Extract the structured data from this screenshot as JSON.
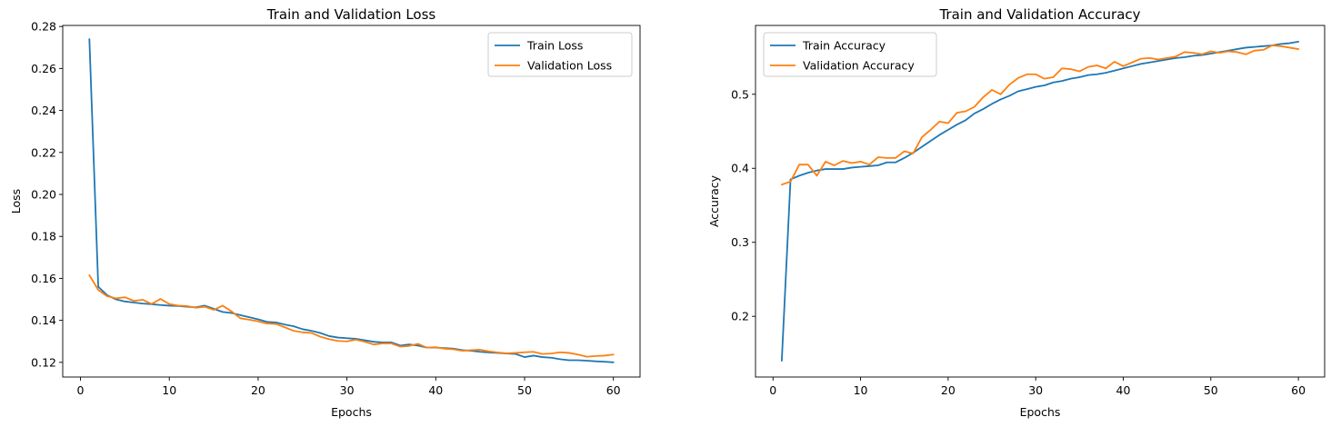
{
  "chart_data": [
    {
      "type": "line",
      "title": "Train and Validation Loss",
      "xlabel": "Epochs",
      "ylabel": "Loss",
      "xlim": [
        -2,
        63
      ],
      "ylim": [
        0.113,
        0.2805
      ],
      "xticks": [
        0,
        10,
        20,
        30,
        40,
        50,
        60
      ],
      "yticks": [
        0.12,
        0.14,
        0.16,
        0.18,
        0.2,
        0.22,
        0.24,
        0.26,
        0.28
      ],
      "ytick_labels": [
        "0.12",
        "0.14",
        "0.16",
        "0.18",
        "0.20",
        "0.22",
        "0.24",
        "0.26",
        "0.28"
      ],
      "legend_position": "upper-right",
      "grid": false,
      "x": [
        1,
        2,
        3,
        4,
        5,
        6,
        7,
        8,
        9,
        10,
        11,
        12,
        13,
        14,
        15,
        16,
        17,
        18,
        19,
        20,
        21,
        22,
        23,
        24,
        25,
        26,
        27,
        28,
        29,
        30,
        31,
        32,
        33,
        34,
        35,
        36,
        37,
        38,
        39,
        40,
        41,
        42,
        43,
        44,
        45,
        46,
        47,
        48,
        49,
        50,
        51,
        52,
        53,
        54,
        55,
        56,
        57,
        58,
        59,
        60
      ],
      "series": [
        {
          "name": "Train Loss",
          "color": "#1f77b4",
          "values": [
            0.274,
            0.156,
            0.152,
            0.15,
            0.149,
            0.1485,
            0.148,
            0.1477,
            0.1473,
            0.147,
            0.1468,
            0.1465,
            0.1462,
            0.147,
            0.1455,
            0.144,
            0.1435,
            0.1425,
            0.1415,
            0.1405,
            0.1393,
            0.139,
            0.138,
            0.1372,
            0.1358,
            0.135,
            0.134,
            0.1325,
            0.1318,
            0.1315,
            0.1312,
            0.1305,
            0.1298,
            0.1295,
            0.1295,
            0.128,
            0.1285,
            0.128,
            0.127,
            0.127,
            0.1268,
            0.1265,
            0.1258,
            0.1255,
            0.125,
            0.1247,
            0.1245,
            0.1242,
            0.124,
            0.1225,
            0.1232,
            0.1225,
            0.1222,
            0.1215,
            0.121,
            0.121,
            0.1208,
            0.1205,
            0.1203,
            0.12
          ]
        },
        {
          "name": "Validation Loss",
          "color": "#ff7f0e",
          "values": [
            0.1615,
            0.1545,
            0.1515,
            0.1505,
            0.151,
            0.1493,
            0.1498,
            0.1478,
            0.1502,
            0.1478,
            0.147,
            0.1468,
            0.146,
            0.1465,
            0.145,
            0.147,
            0.1443,
            0.141,
            0.1403,
            0.1395,
            0.1385,
            0.1383,
            0.1367,
            0.135,
            0.1343,
            0.134,
            0.1322,
            0.131,
            0.1302,
            0.13,
            0.1308,
            0.1298,
            0.1285,
            0.129,
            0.129,
            0.1275,
            0.1278,
            0.1288,
            0.127,
            0.1272,
            0.1265,
            0.1262,
            0.1255,
            0.1258,
            0.126,
            0.1252,
            0.1247,
            0.1243,
            0.1245,
            0.1248,
            0.125,
            0.124,
            0.1242,
            0.1248,
            0.1245,
            0.1237,
            0.1227,
            0.123,
            0.1232,
            0.1237
          ]
        }
      ]
    },
    {
      "type": "line",
      "title": "Train and Validation Accuracy",
      "xlabel": "Epochs",
      "ylabel": "Accuracy",
      "xlim": [
        -2,
        63
      ],
      "ylim": [
        0.118,
        0.593
      ],
      "xticks": [
        0,
        10,
        20,
        30,
        40,
        50,
        60
      ],
      "yticks": [
        0.2,
        0.3,
        0.4,
        0.5
      ],
      "ytick_labels": [
        "0.2",
        "0.3",
        "0.4",
        "0.5"
      ],
      "legend_position": "upper-left",
      "grid": false,
      "x": [
        1,
        2,
        3,
        4,
        5,
        6,
        7,
        8,
        9,
        10,
        11,
        12,
        13,
        14,
        15,
        16,
        17,
        18,
        19,
        20,
        21,
        22,
        23,
        24,
        25,
        26,
        27,
        28,
        29,
        30,
        31,
        32,
        33,
        34,
        35,
        36,
        37,
        38,
        39,
        40,
        41,
        42,
        43,
        44,
        45,
        46,
        47,
        48,
        49,
        50,
        51,
        52,
        53,
        54,
        55,
        56,
        57,
        58,
        59,
        60
      ],
      "series": [
        {
          "name": "Train Accuracy",
          "color": "#1f77b4",
          "values": [
            0.14,
            0.385,
            0.39,
            0.394,
            0.397,
            0.399,
            0.399,
            0.399,
            0.401,
            0.402,
            0.403,
            0.404,
            0.408,
            0.408,
            0.414,
            0.421,
            0.429,
            0.437,
            0.445,
            0.452,
            0.459,
            0.465,
            0.474,
            0.48,
            0.487,
            0.493,
            0.498,
            0.504,
            0.507,
            0.51,
            0.512,
            0.516,
            0.518,
            0.521,
            0.523,
            0.526,
            0.527,
            0.529,
            0.532,
            0.535,
            0.538,
            0.541,
            0.543,
            0.545,
            0.547,
            0.549,
            0.55,
            0.552,
            0.553,
            0.555,
            0.557,
            0.559,
            0.561,
            0.563,
            0.564,
            0.565,
            0.566,
            0.568,
            0.569,
            0.571
          ]
        },
        {
          "name": "Validation Accuracy",
          "color": "#ff7f0e",
          "values": [
            0.378,
            0.382,
            0.405,
            0.405,
            0.39,
            0.409,
            0.404,
            0.41,
            0.407,
            0.409,
            0.405,
            0.415,
            0.414,
            0.414,
            0.423,
            0.42,
            0.442,
            0.452,
            0.463,
            0.461,
            0.475,
            0.477,
            0.483,
            0.496,
            0.506,
            0.5,
            0.513,
            0.522,
            0.527,
            0.527,
            0.521,
            0.523,
            0.535,
            0.534,
            0.531,
            0.537,
            0.539,
            0.535,
            0.544,
            0.538,
            0.543,
            0.548,
            0.549,
            0.547,
            0.549,
            0.551,
            0.557,
            0.556,
            0.554,
            0.558,
            0.556,
            0.558,
            0.557,
            0.554,
            0.559,
            0.56,
            0.566,
            0.565,
            0.563,
            0.561
          ]
        }
      ]
    }
  ]
}
